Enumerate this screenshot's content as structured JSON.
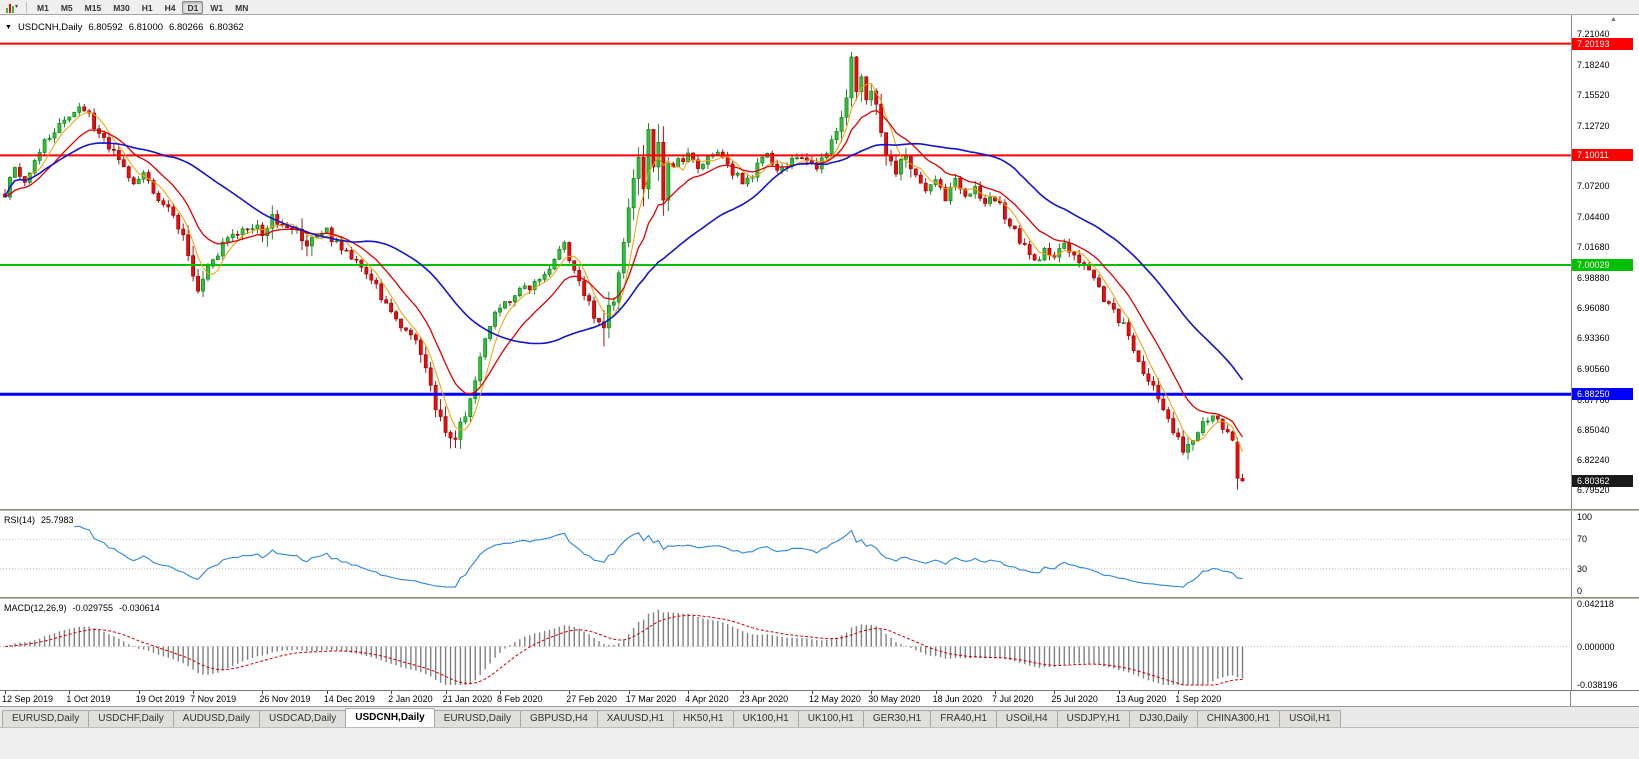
{
  "toolbar": {
    "timeframes": [
      "M1",
      "M5",
      "M15",
      "M30",
      "H1",
      "H4",
      "D1",
      "W1",
      "MN"
    ],
    "active_timeframe": "D1"
  },
  "main_chart": {
    "title": "USDCNH,Daily",
    "open": "6.80592",
    "high": "6.81000",
    "low": "6.80266",
    "close": "6.80362",
    "axis_top_price": 7.228,
    "axis_bottom_price": 6.778,
    "price_axis_labels": [
      "7.21040",
      "7.18240",
      "7.15520",
      "7.12720",
      "7.10000",
      "7.07200",
      "7.04400",
      "7.01680",
      "6.98880",
      "6.96080",
      "6.93360",
      "6.90560",
      "6.87760",
      "6.85040",
      "6.82240",
      "6.79520"
    ],
    "hlines": [
      {
        "price": 7.20193,
        "label": "7.20193",
        "color": "#FF0000",
        "width": 2
      },
      {
        "price": 7.10011,
        "label": "7.10011",
        "color": "#FF0000",
        "width": 2
      },
      {
        "price": 7.00029,
        "label": "7.00029",
        "color": "#00C000",
        "width": 2
      },
      {
        "price": 6.8825,
        "label": "6.88250",
        "color": "#0000FF",
        "width": 3
      }
    ],
    "current_price_badge": {
      "text": "6.80362",
      "value": 6.80362,
      "bg": "#1A1A1A"
    },
    "colors": {
      "up_fill": "#2FBF3A",
      "up_stroke": "#0B7A14",
      "down_fill": "#EF0A0A",
      "down_stroke": "#8F0000"
    }
  },
  "rsi": {
    "label": "RSI(14)",
    "value": "25.7983",
    "period": 14,
    "color": "#2E86D9",
    "levels": [
      70,
      30
    ],
    "axis_labels": [
      "100",
      "70",
      "30",
      "0"
    ]
  },
  "macd": {
    "label": "MACD(12,26,9)",
    "value_main": "-0.029755",
    "value_signal": "-0.030614",
    "fast": 12,
    "slow": 26,
    "signal": 9,
    "axis_max_label": "0.042118",
    "axis_zero_label": "0.000000",
    "axis_min_label": "-0.038196",
    "scale_max": 0.042118,
    "scale_min": -0.038196,
    "histogram_color": "#808080",
    "signal_color": "#CC0000"
  },
  "tabs": [
    {
      "label": "EURUSD,Daily",
      "active": false
    },
    {
      "label": "USDCHF,Daily",
      "active": false
    },
    {
      "label": "AUDUSD,Daily",
      "active": false
    },
    {
      "label": "USDCAD,Daily",
      "active": false
    },
    {
      "label": "USDCNH,Daily",
      "active": true
    },
    {
      "label": "EURUSD,Daily",
      "active": false
    },
    {
      "label": "GBPUSD,H4",
      "active": false
    },
    {
      "label": "XAUUSD,H1",
      "active": false
    },
    {
      "label": "HK50,H1",
      "active": false
    },
    {
      "label": "UK100,H1",
      "active": false
    },
    {
      "label": "UK100,H1",
      "active": false
    },
    {
      "label": "GER30,H1",
      "active": false
    },
    {
      "label": "FRA40,H1",
      "active": false
    },
    {
      "label": "USOil,H4",
      "active": false
    },
    {
      "label": "USDJPY,H1",
      "active": false
    },
    {
      "label": "DJ30,Daily",
      "active": false
    },
    {
      "label": "CHINA300,H1",
      "active": false
    },
    {
      "label": "USOil,H1",
      "active": false
    }
  ],
  "chart_data": {
    "type": "candlestick",
    "symbol": "USDCNH",
    "timeframe": "Daily",
    "candle_count": 251,
    "random_seed": 20200910,
    "base_noise": 0.0045,
    "visible_high": 7.1975,
    "visible_low": 6.7945,
    "last_candle": {
      "o": 6.80592,
      "h": 6.81,
      "l": 6.80266,
      "c": 6.80362
    },
    "prior_candle": {
      "o": 6.839,
      "h": 6.843,
      "l": 6.7955,
      "c": 6.806
    },
    "price_waypoints": [
      [
        0,
        7.065
      ],
      [
        2,
        7.088
      ],
      [
        4,
        7.075
      ],
      [
        6,
        7.098
      ],
      [
        8,
        7.112
      ],
      [
        10,
        7.124
      ],
      [
        13,
        7.134
      ],
      [
        16,
        7.144
      ],
      [
        18,
        7.126
      ],
      [
        20,
        7.114
      ],
      [
        23,
        7.096
      ],
      [
        26,
        7.076
      ],
      [
        28,
        7.088
      ],
      [
        30,
        7.066
      ],
      [
        33,
        7.05
      ],
      [
        36,
        7.03
      ],
      [
        38,
        6.996
      ],
      [
        39,
        6.978
      ],
      [
        41,
        7.0
      ],
      [
        44,
        7.018
      ],
      [
        47,
        7.03
      ],
      [
        50,
        7.036
      ],
      [
        52,
        7.03
      ],
      [
        54,
        7.042
      ],
      [
        57,
        7.036
      ],
      [
        60,
        7.02
      ],
      [
        63,
        7.026
      ],
      [
        65,
        7.03
      ],
      [
        68,
        7.016
      ],
      [
        71,
        7.006
      ],
      [
        74,
        6.986
      ],
      [
        77,
        6.966
      ],
      [
        80,
        6.946
      ],
      [
        83,
        6.934
      ],
      [
        85,
        6.9
      ],
      [
        87,
        6.868
      ],
      [
        89,
        6.85
      ],
      [
        91,
        6.846
      ],
      [
        93,
        6.866
      ],
      [
        95,
        6.896
      ],
      [
        97,
        6.93
      ],
      [
        99,
        6.954
      ],
      [
        101,
        6.964
      ],
      [
        103,
        6.974
      ],
      [
        106,
        6.98
      ],
      [
        109,
        6.99
      ],
      [
        111,
        7.004
      ],
      [
        113,
        7.02
      ],
      [
        115,
        6.996
      ],
      [
        117,
        6.976
      ],
      [
        119,
        6.954
      ],
      [
        121,
        6.94
      ],
      [
        123,
        6.968
      ],
      [
        125,
        7.02
      ],
      [
        127,
        7.088
      ],
      [
        128,
        7.11
      ],
      [
        129,
        7.072
      ],
      [
        130,
        7.118
      ],
      [
        131,
        7.082
      ],
      [
        132,
        7.108
      ],
      [
        133,
        7.06
      ],
      [
        134,
        7.082
      ],
      [
        136,
        7.094
      ],
      [
        138,
        7.1
      ],
      [
        140,
        7.086
      ],
      [
        142,
        7.096
      ],
      [
        144,
        7.104
      ],
      [
        146,
        7.09
      ],
      [
        148,
        7.08
      ],
      [
        150,
        7.076
      ],
      [
        152,
        7.09
      ],
      [
        154,
        7.1
      ],
      [
        156,
        7.086
      ],
      [
        158,
        7.094
      ],
      [
        160,
        7.1
      ],
      [
        162,
        7.094
      ],
      [
        164,
        7.086
      ],
      [
        166,
        7.104
      ],
      [
        168,
        7.124
      ],
      [
        170,
        7.154
      ],
      [
        171,
        7.184
      ],
      [
        172,
        7.16
      ],
      [
        173,
        7.172
      ],
      [
        174,
        7.146
      ],
      [
        175,
        7.162
      ],
      [
        176,
        7.14
      ],
      [
        177,
        7.12
      ],
      [
        178,
        7.102
      ],
      [
        180,
        7.086
      ],
      [
        182,
        7.096
      ],
      [
        184,
        7.076
      ],
      [
        186,
        7.066
      ],
      [
        188,
        7.076
      ],
      [
        190,
        7.062
      ],
      [
        192,
        7.076
      ],
      [
        194,
        7.06
      ],
      [
        196,
        7.068
      ],
      [
        198,
        7.056
      ],
      [
        200,
        7.062
      ],
      [
        202,
        7.046
      ],
      [
        204,
        7.03
      ],
      [
        206,
        7.016
      ],
      [
        208,
        7.002
      ],
      [
        210,
        7.012
      ],
      [
        212,
        7.006
      ],
      [
        214,
        7.018
      ],
      [
        216,
        7.01
      ],
      [
        218,
        7.002
      ],
      [
        220,
        6.988
      ],
      [
        222,
        6.968
      ],
      [
        224,
        6.956
      ],
      [
        226,
        6.946
      ],
      [
        228,
        6.922
      ],
      [
        230,
        6.906
      ],
      [
        232,
        6.888
      ],
      [
        234,
        6.87
      ],
      [
        236,
        6.848
      ],
      [
        238,
        6.832
      ],
      [
        240,
        6.846
      ],
      [
        242,
        6.856
      ],
      [
        244,
        6.862
      ],
      [
        246,
        6.85
      ],
      [
        248,
        6.84
      ],
      [
        249,
        6.808
      ],
      [
        250,
        6.8036
      ]
    ],
    "volatility_zones": [
      [
        36,
        40,
        1.8
      ],
      [
        52,
        54,
        2.2
      ],
      [
        59,
        62,
        2.0
      ],
      [
        84,
        93,
        2.0
      ],
      [
        121,
        134,
        3.6
      ],
      [
        168,
        178,
        2.0
      ],
      [
        179,
        184,
        1.6
      ],
      [
        228,
        233,
        1.4
      ],
      [
        236,
        240,
        1.5
      ]
    ],
    "moving_averages": [
      {
        "name": "fast-ma",
        "type": "sma",
        "period": 5,
        "color": "#F0A000",
        "width": 1
      },
      {
        "name": "mid-ma",
        "type": "ema",
        "period": 13,
        "color": "#E00000",
        "width": 1.3
      },
      {
        "name": "slow-ma",
        "type": "sma",
        "period": 34,
        "color": "#1414CC",
        "width": 1.6
      }
    ],
    "date_axis": [
      {
        "i": 0,
        "text": "12 Sep 2019"
      },
      {
        "i": 13,
        "text": "1 Oct 2019"
      },
      {
        "i": 27,
        "text": "19 Oct 2019"
      },
      {
        "i": 38,
        "text": "7 Nov 2019"
      },
      {
        "i": 52,
        "text": "26 Nov 2019"
      },
      {
        "i": 65,
        "text": "14 Dec 2019"
      },
      {
        "i": 78,
        "text": "2 Jan 2020"
      },
      {
        "i": 89,
        "text": "21 Jan 2020"
      },
      {
        "i": 100,
        "text": "8 Feb 2020"
      },
      {
        "i": 114,
        "text": "27 Feb 2020"
      },
      {
        "i": 126,
        "text": "17 Mar 2020"
      },
      {
        "i": 138,
        "text": "4 Apr 2020"
      },
      {
        "i": 149,
        "text": "23 Apr 2020"
      },
      {
        "i": 163,
        "text": "12 May 2020"
      },
      {
        "i": 175,
        "text": "30 May 2020"
      },
      {
        "i": 188,
        "text": "18 Jun 2020"
      },
      {
        "i": 200,
        "text": "7 Jul 2020"
      },
      {
        "i": 212,
        "text": "25 Jul 2020"
      },
      {
        "i": 225,
        "text": "13 Aug 2020"
      },
      {
        "i": 237,
        "text": "1 Sep 2020"
      }
    ]
  }
}
